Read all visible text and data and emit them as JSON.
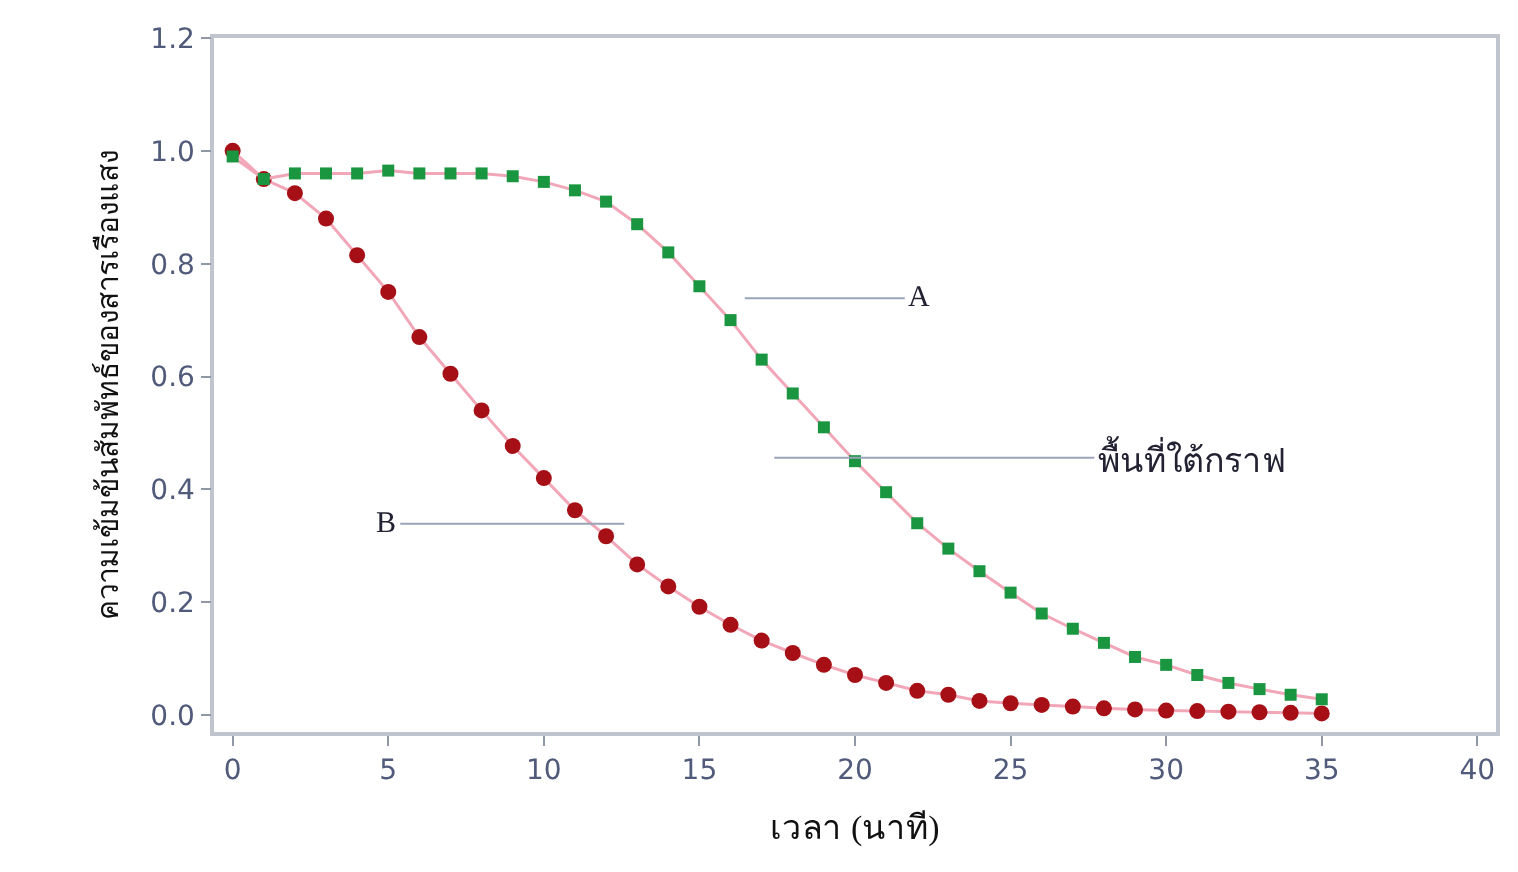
{
  "chart_data": {
    "type": "line",
    "xlabel": "เวลา (นาที)",
    "ylabel": "ความเข้มข้นสัมพัทธ์ของสารเรืองแสง",
    "x": [
      0,
      1,
      2,
      3,
      4,
      5,
      6,
      7,
      8,
      9,
      10,
      11,
      12,
      13,
      14,
      15,
      16,
      17,
      18,
      19,
      20,
      21,
      22,
      23,
      24,
      25,
      26,
      27,
      28,
      29,
      30,
      31,
      32,
      33,
      34,
      35
    ],
    "series": [
      {
        "color": "#1a9641",
        "marker": "square",
        "values": [
          0.99,
          0.95,
          0.96,
          0.96,
          0.96,
          0.965,
          0.96,
          0.96,
          0.96,
          0.955,
          0.945,
          0.93,
          0.91,
          0.87,
          0.82,
          0.76,
          0.7,
          0.63,
          0.57,
          0.51,
          0.45,
          0.395,
          0.34,
          0.295,
          0.255,
          0.217,
          0.18,
          0.153,
          0.128,
          0.103,
          0.089,
          0.071,
          0.057,
          0.046,
          0.036,
          0.028
        ]
      },
      {
        "color": "#a50f15",
        "marker": "circle",
        "values": [
          1.0,
          0.95,
          0.925,
          0.88,
          0.815,
          0.75,
          0.67,
          0.605,
          0.54,
          0.477,
          0.42,
          0.363,
          0.317,
          0.267,
          0.228,
          0.192,
          0.16,
          0.132,
          0.11,
          0.089,
          0.071,
          0.057,
          0.043,
          0.036,
          0.025,
          0.021,
          0.018,
          0.015,
          0.012,
          0.01,
          0.008,
          0.007,
          0.006,
          0.005,
          0.004,
          0.003
        ]
      }
    ],
    "annotations": [
      "A",
      "B",
      "พื้นที่ใต้กราฟ"
    ],
    "xlim": [
      -0.6,
      40.6
    ],
    "xticks": [
      0,
      5,
      10,
      15,
      20,
      25,
      30,
      35,
      40
    ],
    "ylim": [
      -0.03,
      1.2
    ],
    "yticks": [
      {
        "value": 0,
        "label": "0.0"
      },
      {
        "value": 0.2,
        "label": "0.2"
      },
      {
        "value": 0.4,
        "label": "0.4"
      },
      {
        "value": 0.6,
        "label": "0.6"
      },
      {
        "value": 0.8,
        "label": "0.8"
      },
      {
        "value": 1.0,
        "label": "1.0"
      },
      {
        "value": 1.2,
        "label": "1.2"
      }
    ],
    "line_style": "solid"
  }
}
